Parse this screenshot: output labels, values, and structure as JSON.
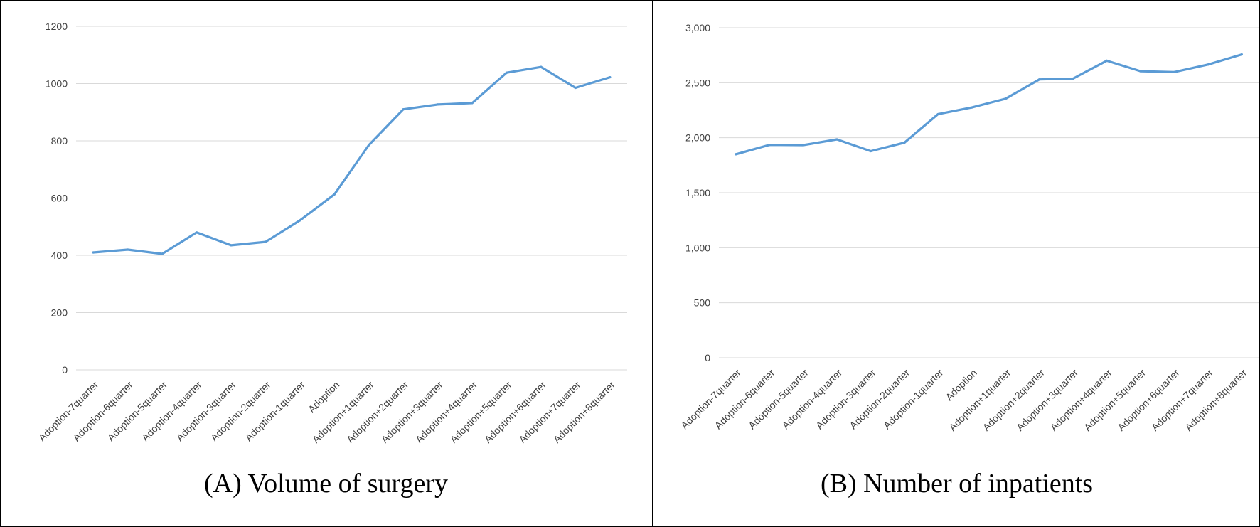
{
  "chart_data": [
    {
      "type": "line",
      "title": "(A) Volume of surgery",
      "categories": [
        "Adoption-7quarter",
        "Adoption-6quarter",
        "Adoption-5quarter",
        "Adoption-4quarter",
        "Adoption-3quarter",
        "Adoption-2quarter",
        "Adoption-1quarter",
        "Adoption",
        "Adoption+1quarter",
        "Adoption+2quarter",
        "Adoption+3quarter",
        "Adoption+4quarter",
        "Adoption+5quarter",
        "Adoption+6quarter",
        "Adoption+7quarter",
        "Adoption+8quarter"
      ],
      "values": [
        410,
        420,
        405,
        480,
        435,
        447,
        522,
        613,
        785,
        910,
        927,
        932,
        1038,
        1058,
        985,
        1022
      ],
      "yticks": [
        "0",
        "200",
        "400",
        "600",
        "800",
        "1000",
        "1200"
      ],
      "ylim": [
        0,
        1200
      ],
      "grid": true,
      "line_color": "#5b9bd5"
    },
    {
      "type": "line",
      "title": "(B) Number of inpatients",
      "categories": [
        "Adoption-7quarter",
        "Adoption-6quarter",
        "Adoption-5quarter",
        "Adoption-4quarter",
        "Adoption-3quarter",
        "Adoption-2quarter",
        "Adoption-1quarter",
        "Adoption",
        "Adoption+1quarter",
        "Adoption+2quarter",
        "Adoption+3quarter",
        "Adoption+4quarter",
        "Adoption+5quarter",
        "Adoption+6quarter",
        "Adoption+7quarter",
        "Adoption+8quarter"
      ],
      "values": [
        1850,
        1935,
        1933,
        1985,
        1878,
        1955,
        2215,
        2275,
        2355,
        2530,
        2538,
        2700,
        2605,
        2597,
        2665,
        2757
      ],
      "yticks": [
        "0",
        "500",
        "1,000",
        "1,500",
        "2,000",
        "2,500",
        "3,000"
      ],
      "ylim": [
        0,
        3000
      ],
      "grid": true,
      "line_color": "#5b9bd5"
    }
  ]
}
